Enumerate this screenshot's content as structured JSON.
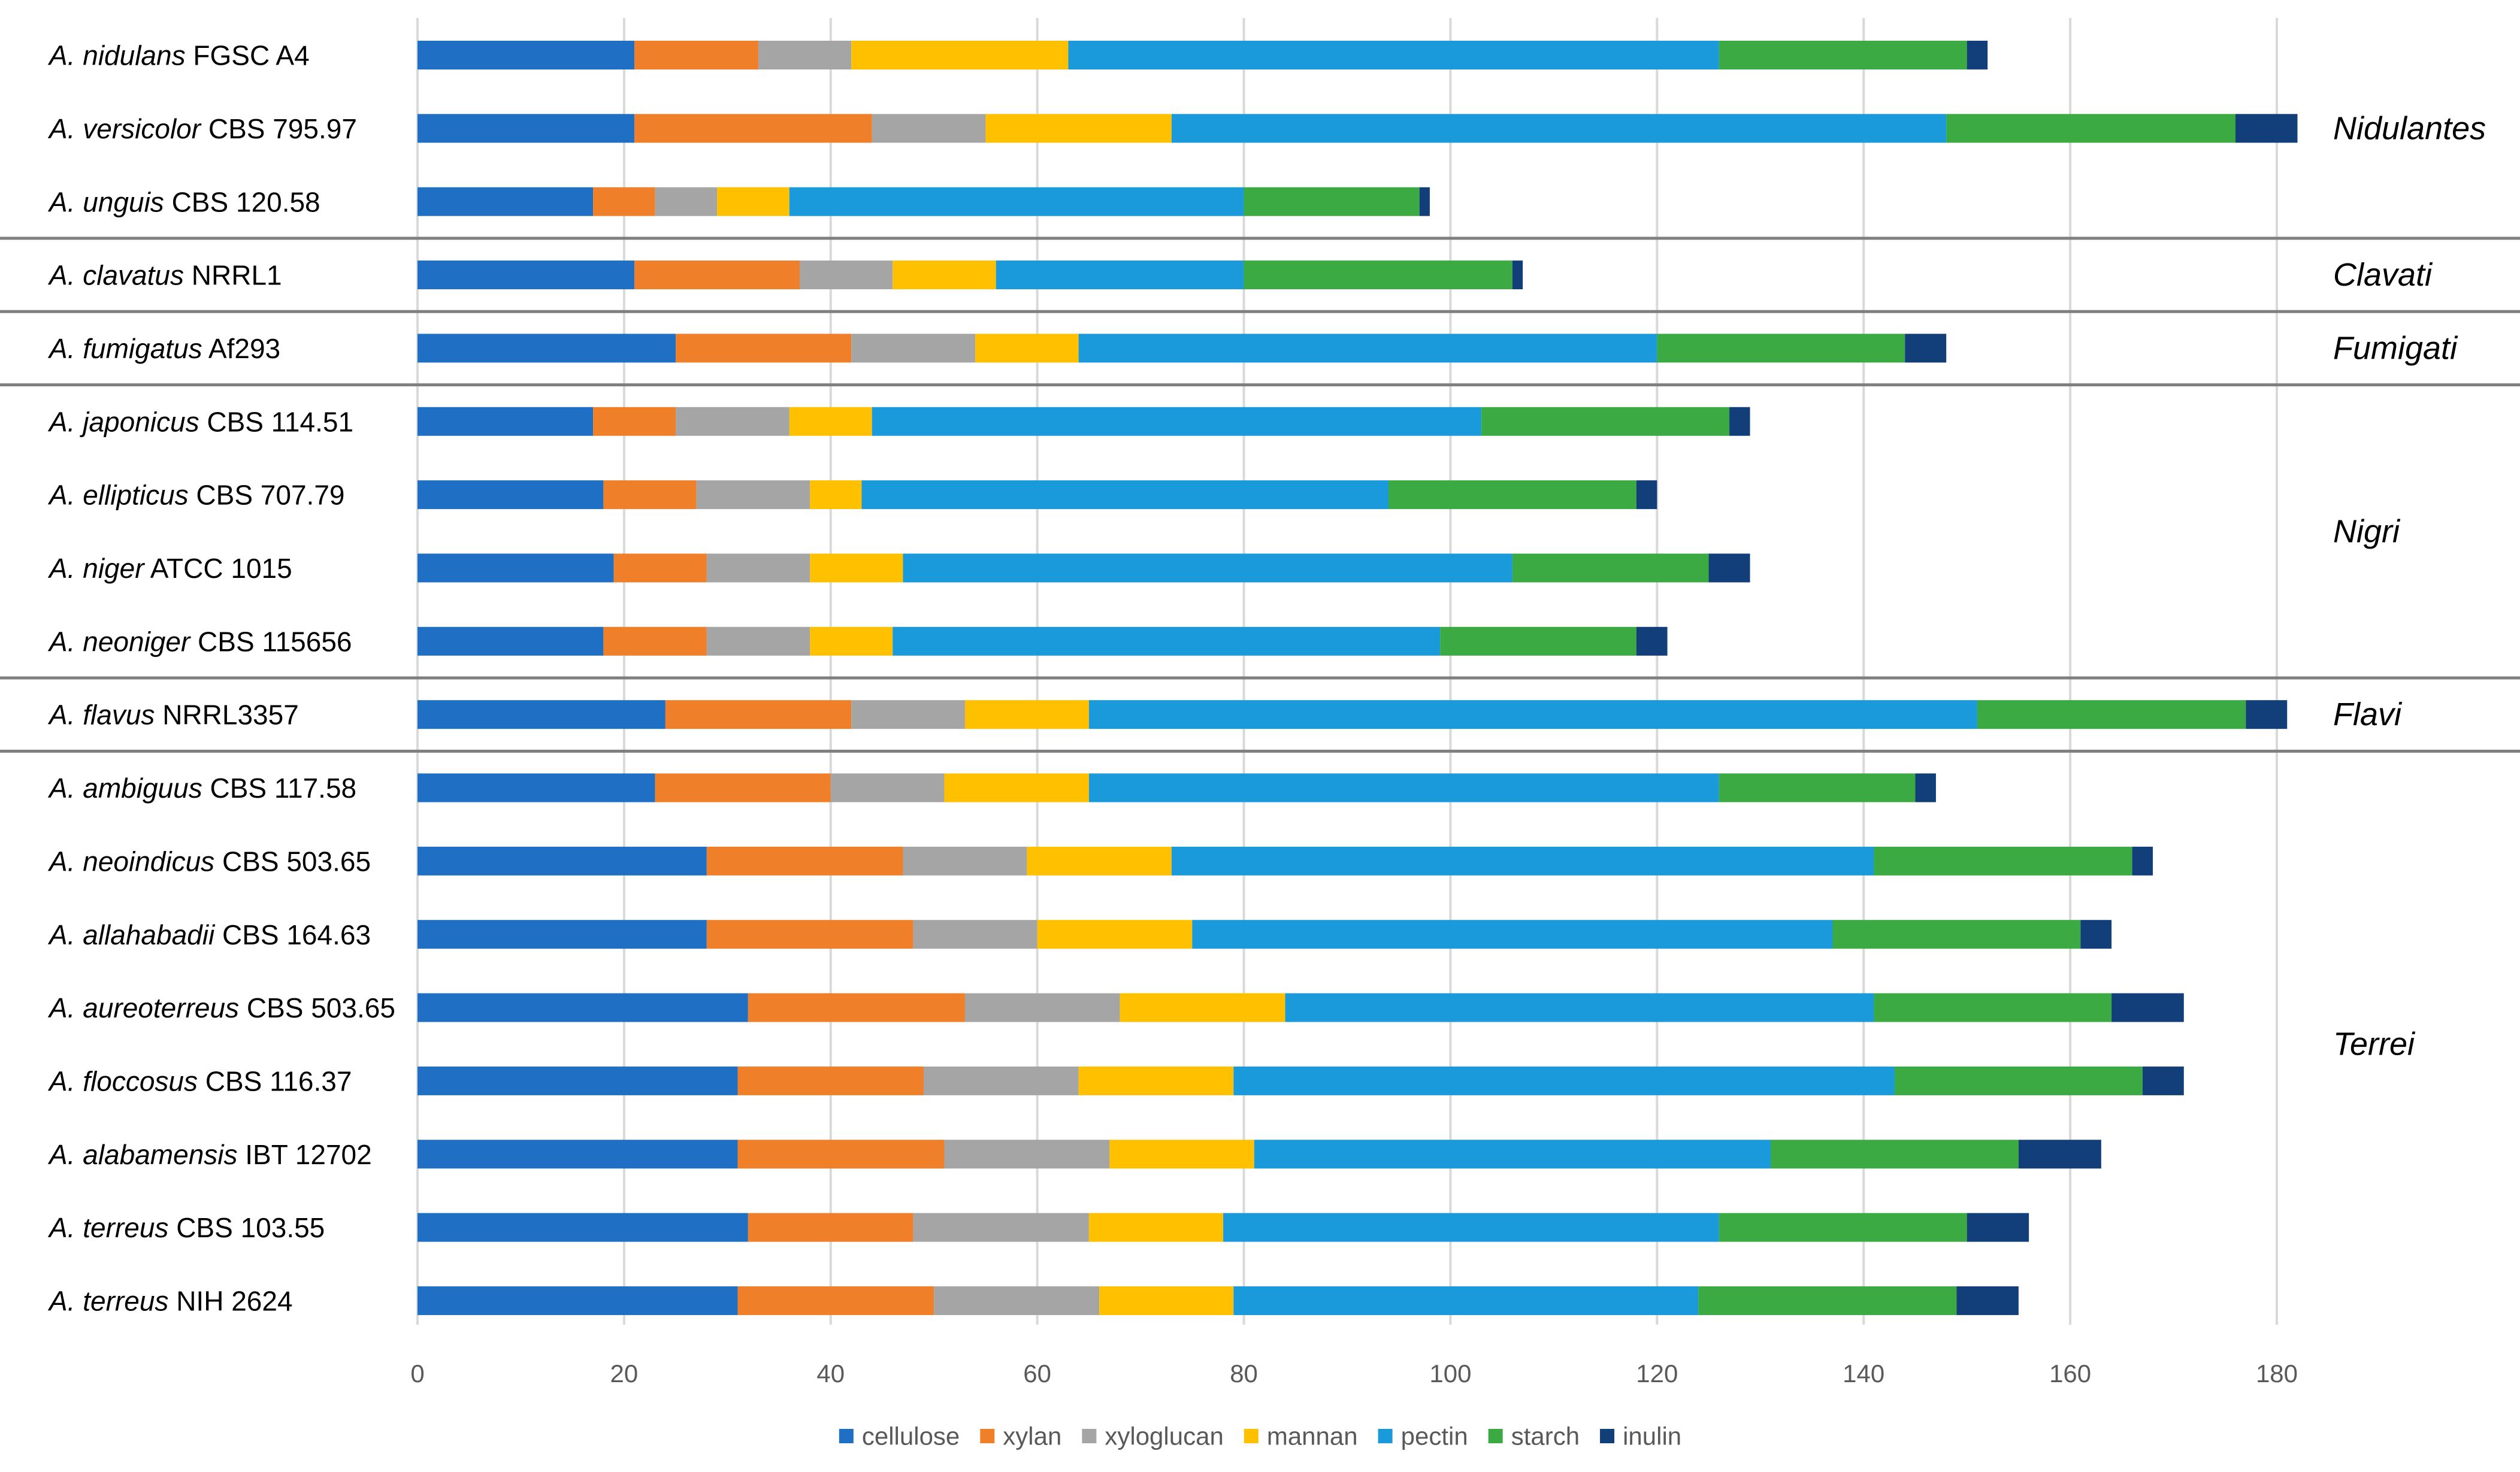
{
  "chart_data": {
    "type": "bar",
    "orientation": "horizontal",
    "stacked": true,
    "title": "",
    "xlabel": "",
    "ylabel": "",
    "xlim": [
      0,
      180
    ],
    "xticks": [
      0,
      20,
      40,
      60,
      80,
      100,
      120,
      140,
      160,
      180
    ],
    "grid": true,
    "legend_position": "bottom",
    "categories": [
      {
        "species": "A. nidulans",
        "strain": "FGSC A4"
      },
      {
        "species": "A. versicolor",
        "strain": "CBS 795.97"
      },
      {
        "species": "A. unguis",
        "strain": "CBS 120.58"
      },
      {
        "species": "A. clavatus",
        "strain": "NRRL1"
      },
      {
        "species": "A. fumigatus",
        "strain": "Af293"
      },
      {
        "species": "A. japonicus",
        "strain": "CBS 114.51"
      },
      {
        "species": "A. ellipticus",
        "strain": "CBS 707.79"
      },
      {
        "species": "A. niger",
        "strain": "ATCC 1015"
      },
      {
        "species": "A. neoniger",
        "strain": "CBS 115656"
      },
      {
        "species": "A. flavus",
        "strain": "NRRL3357"
      },
      {
        "species": "A. ambiguus",
        "strain": "CBS 117.58"
      },
      {
        "species": "A. neoindicus",
        "strain": "CBS 503.65"
      },
      {
        "species": "A. allahabadii",
        "strain": "CBS 164.63"
      },
      {
        "species": "A. aureoterreus",
        "strain": "CBS 503.65"
      },
      {
        "species": "A. floccosus",
        "strain": "CBS 116.37"
      },
      {
        "species": "A. alabamensis",
        "strain": "IBT 12702"
      },
      {
        "species": "A. terreus",
        "strain": "CBS 103.55"
      },
      {
        "species": "A. terreus",
        "strain": "NIH 2624"
      }
    ],
    "series": [
      {
        "name": "cellulose",
        "color": "#1F6FC5",
        "values": [
          21,
          21,
          17,
          21,
          25,
          17,
          18,
          19,
          18,
          24,
          23,
          28,
          28,
          32,
          31,
          31,
          32,
          31
        ]
      },
      {
        "name": "xylan",
        "color": "#F07F2A",
        "values": [
          12,
          23,
          6,
          16,
          17,
          8,
          9,
          9,
          10,
          18,
          17,
          19,
          20,
          21,
          18,
          20,
          16,
          19
        ]
      },
      {
        "name": "xyloglucan",
        "color": "#A5A5A5",
        "values": [
          9,
          11,
          6,
          9,
          12,
          11,
          11,
          10,
          10,
          11,
          11,
          12,
          12,
          15,
          15,
          16,
          17,
          16
        ]
      },
      {
        "name": "mannan",
        "color": "#FFC000",
        "values": [
          21,
          18,
          7,
          10,
          10,
          8,
          5,
          9,
          8,
          12,
          14,
          14,
          15,
          16,
          15,
          14,
          13,
          13
        ]
      },
      {
        "name": "pectin",
        "color": "#1A9ADA",
        "values": [
          63,
          75,
          44,
          24,
          56,
          59,
          51,
          59,
          53,
          86,
          61,
          68,
          62,
          57,
          64,
          50,
          48,
          45
        ]
      },
      {
        "name": "starch",
        "color": "#3BAA42",
        "values": [
          24,
          28,
          17,
          26,
          24,
          24,
          24,
          19,
          19,
          26,
          19,
          25,
          24,
          23,
          24,
          24,
          24,
          25
        ]
      },
      {
        "name": "inulin",
        "color": "#123F7A",
        "values": [
          2,
          6,
          1,
          1,
          4,
          2,
          2,
          4,
          3,
          4,
          2,
          2,
          3,
          7,
          4,
          8,
          6,
          6
        ]
      }
    ],
    "groups": [
      {
        "label": "Nidulantes",
        "start_row": 0,
        "end_row": 2
      },
      {
        "label": "Clavati",
        "start_row": 3,
        "end_row": 3
      },
      {
        "label": "Fumigati",
        "start_row": 4,
        "end_row": 4
      },
      {
        "label": "Nigri",
        "start_row": 5,
        "end_row": 8
      },
      {
        "label": "Flavi",
        "start_row": 9,
        "end_row": 9
      },
      {
        "label": "Terrei",
        "start_row": 10,
        "end_row": 17
      }
    ],
    "colors": {
      "gridline": "#D9D9D9",
      "separator": "#7F7F7F",
      "text": "#000000",
      "tick_text": "#595959"
    }
  }
}
